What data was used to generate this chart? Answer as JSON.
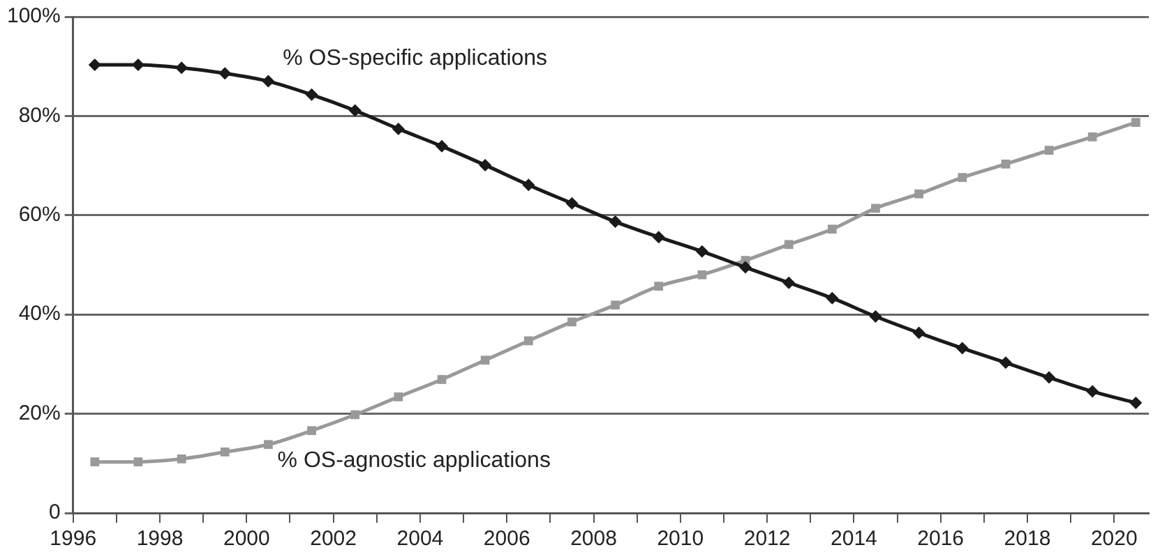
{
  "chart_data": {
    "type": "line",
    "x": [
      1996.5,
      1997.5,
      1998.5,
      1999.5,
      2000.5,
      2001.5,
      2002.5,
      2003.5,
      2004.5,
      2005.5,
      2006.5,
      2007.5,
      2008.5,
      2009.5,
      2010.5,
      2011.5,
      2012.5,
      2013.5,
      2014.5,
      2015.5,
      2016.5,
      2017.5,
      2018.5,
      2019.5,
      2020.5
    ],
    "series": [
      {
        "name": "% OS-specific applications",
        "color": "#1a1a1a",
        "marker": "diamond",
        "values": [
          90.3,
          90.3,
          89.7,
          88.6,
          87.0,
          84.3,
          81.1,
          77.4,
          73.9,
          70.1,
          66.1,
          62.4,
          58.7,
          55.6,
          52.7,
          49.5,
          46.4,
          43.3,
          39.6,
          36.3,
          33.2,
          30.3,
          27.3,
          24.5,
          22.2
        ]
      },
      {
        "name": "% OS-agnostic applications",
        "color": "#999999",
        "marker": "square",
        "values": [
          10.3,
          10.3,
          10.9,
          12.3,
          13.8,
          16.6,
          19.8,
          23.4,
          26.9,
          30.8,
          34.7,
          38.5,
          41.9,
          45.7,
          48.0,
          50.9,
          54.1,
          57.2,
          61.4,
          64.3,
          67.6,
          70.3,
          73.1,
          75.8,
          78.7
        ]
      }
    ],
    "xlim": [
      1996,
      2020.8
    ],
    "xticks": [
      1996,
      {
        "value": 1997,
        "label": null
      },
      1998,
      {
        "value": 1999,
        "label": null
      },
      2000,
      {
        "value": 2001,
        "label": null
      },
      2002,
      {
        "value": 2003,
        "label": null
      },
      2004,
      {
        "value": 2005,
        "label": null
      },
      2006,
      {
        "value": 2007,
        "label": null
      },
      2008,
      {
        "value": 2009,
        "label": null
      },
      2010,
      {
        "value": 2011,
        "label": null
      },
      2012,
      {
        "value": 2013,
        "label": null
      },
      2014,
      {
        "value": 2015,
        "label": null
      },
      2016,
      {
        "value": 2017,
        "label": null
      },
      2018,
      {
        "value": 2019,
        "label": null
      },
      2020
    ],
    "ylim": [
      0,
      100
    ],
    "yticks": [
      {
        "value": 0,
        "label": "0"
      },
      {
        "value": 20,
        "label": "20%"
      },
      {
        "value": 40,
        "label": "40%"
      },
      {
        "value": 60,
        "label": "60%"
      },
      {
        "value": 80,
        "label": "80%"
      },
      {
        "value": 100,
        "label": "100%"
      }
    ],
    "grid": "y",
    "legend": false,
    "line_style": "solid"
  }
}
